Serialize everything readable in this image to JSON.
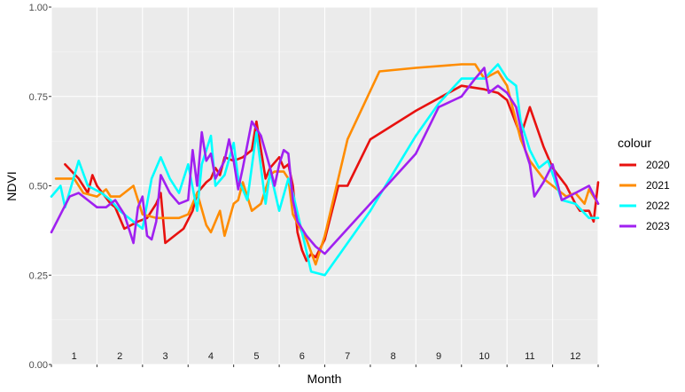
{
  "chart_data": {
    "type": "line",
    "xlabel": "Month",
    "ylabel": "NDVI",
    "legend_title": "colour",
    "legend_position": "right",
    "grid": true,
    "xlim": [
      0,
      12
    ],
    "ylim": [
      0,
      1
    ],
    "y_ticks": [
      "0.00",
      "0.25",
      "0.50",
      "0.75",
      "1.00"
    ],
    "x_tick_labels": [
      "1",
      "2",
      "3",
      "4",
      "5",
      "6",
      "7",
      "8",
      "9",
      "10",
      "11",
      "12"
    ],
    "series": [
      {
        "name": "2020",
        "color": "#e8110f",
        "points": [
          [
            0.3,
            0.56
          ],
          [
            0.6,
            0.52
          ],
          [
            0.8,
            0.48
          ],
          [
            0.9,
            0.53
          ],
          [
            1.0,
            0.5
          ],
          [
            1.3,
            0.45
          ],
          [
            1.4,
            0.44
          ],
          [
            1.6,
            0.38
          ],
          [
            1.9,
            0.4
          ],
          [
            2.1,
            0.41
          ],
          [
            2.3,
            0.45
          ],
          [
            2.4,
            0.48
          ],
          [
            2.5,
            0.34
          ],
          [
            2.7,
            0.36
          ],
          [
            2.9,
            0.38
          ],
          [
            3.1,
            0.43
          ],
          [
            3.2,
            0.48
          ],
          [
            3.4,
            0.51
          ],
          [
            3.5,
            0.52
          ],
          [
            3.6,
            0.55
          ],
          [
            3.7,
            0.53
          ],
          [
            3.8,
            0.58
          ],
          [
            4.0,
            0.57
          ],
          [
            4.2,
            0.58
          ],
          [
            4.4,
            0.6
          ],
          [
            4.5,
            0.68
          ],
          [
            4.7,
            0.52
          ],
          [
            4.8,
            0.55
          ],
          [
            5.0,
            0.58
          ],
          [
            5.1,
            0.55
          ],
          [
            5.2,
            0.56
          ],
          [
            5.3,
            0.5
          ],
          [
            5.4,
            0.37
          ],
          [
            5.5,
            0.32
          ],
          [
            5.6,
            0.29
          ],
          [
            5.7,
            0.31
          ],
          [
            5.8,
            0.3
          ],
          [
            6.0,
            0.35
          ],
          [
            6.3,
            0.5
          ],
          [
            6.5,
            0.5
          ],
          [
            7.0,
            0.63
          ],
          [
            8.0,
            0.71
          ],
          [
            9.0,
            0.78
          ],
          [
            9.5,
            0.77
          ],
          [
            9.8,
            0.76
          ],
          [
            10.0,
            0.74
          ],
          [
            10.3,
            0.64
          ],
          [
            10.5,
            0.72
          ],
          [
            10.8,
            0.61
          ],
          [
            11.0,
            0.55
          ],
          [
            11.3,
            0.5
          ],
          [
            11.5,
            0.45
          ],
          [
            11.6,
            0.43
          ],
          [
            11.8,
            0.43
          ],
          [
            11.9,
            0.4
          ],
          [
            12.0,
            0.51
          ]
        ]
      },
      {
        "name": "2021",
        "color": "#ff8c00",
        "points": [
          [
            0.1,
            0.52
          ],
          [
            0.5,
            0.52
          ],
          [
            0.7,
            0.48
          ],
          [
            1.0,
            0.47
          ],
          [
            1.2,
            0.49
          ],
          [
            1.3,
            0.47
          ],
          [
            1.5,
            0.47
          ],
          [
            1.8,
            0.5
          ],
          [
            2.0,
            0.42
          ],
          [
            2.3,
            0.41
          ],
          [
            2.5,
            0.41
          ],
          [
            2.8,
            0.41
          ],
          [
            3.0,
            0.42
          ],
          [
            3.2,
            0.48
          ],
          [
            3.4,
            0.39
          ],
          [
            3.5,
            0.37
          ],
          [
            3.7,
            0.43
          ],
          [
            3.8,
            0.36
          ],
          [
            4.0,
            0.45
          ],
          [
            4.1,
            0.46
          ],
          [
            4.2,
            0.51
          ],
          [
            4.4,
            0.43
          ],
          [
            4.6,
            0.45
          ],
          [
            4.8,
            0.53
          ],
          [
            4.9,
            0.54
          ],
          [
            5.1,
            0.54
          ],
          [
            5.2,
            0.52
          ],
          [
            5.3,
            0.42
          ],
          [
            5.5,
            0.37
          ],
          [
            5.6,
            0.35
          ],
          [
            5.8,
            0.28
          ],
          [
            6.0,
            0.36
          ],
          [
            6.5,
            0.63
          ],
          [
            7.2,
            0.82
          ],
          [
            8.0,
            0.83
          ],
          [
            9.0,
            0.84
          ],
          [
            9.3,
            0.84
          ],
          [
            9.5,
            0.8
          ],
          [
            9.8,
            0.82
          ],
          [
            10.0,
            0.78
          ],
          [
            10.3,
            0.63
          ],
          [
            10.5,
            0.57
          ],
          [
            10.8,
            0.52
          ],
          [
            11.0,
            0.5
          ],
          [
            11.3,
            0.47
          ],
          [
            11.5,
            0.48
          ],
          [
            11.7,
            0.45
          ],
          [
            11.8,
            0.49
          ],
          [
            12.0,
            0.45
          ]
        ]
      },
      {
        "name": "2022",
        "color": "#00ffff",
        "points": [
          [
            0.0,
            0.47
          ],
          [
            0.2,
            0.5
          ],
          [
            0.3,
            0.44
          ],
          [
            0.6,
            0.57
          ],
          [
            0.8,
            0.5
          ],
          [
            1.1,
            0.48
          ],
          [
            1.3,
            0.46
          ],
          [
            1.5,
            0.43
          ],
          [
            1.7,
            0.41
          ],
          [
            2.0,
            0.38
          ],
          [
            2.2,
            0.52
          ],
          [
            2.4,
            0.58
          ],
          [
            2.6,
            0.52
          ],
          [
            2.8,
            0.48
          ],
          [
            3.0,
            0.56
          ],
          [
            3.2,
            0.43
          ],
          [
            3.3,
            0.56
          ],
          [
            3.5,
            0.64
          ],
          [
            3.6,
            0.5
          ],
          [
            3.8,
            0.53
          ],
          [
            4.0,
            0.62
          ],
          [
            4.1,
            0.52
          ],
          [
            4.3,
            0.46
          ],
          [
            4.5,
            0.65
          ],
          [
            4.7,
            0.45
          ],
          [
            4.8,
            0.54
          ],
          [
            5.0,
            0.43
          ],
          [
            5.2,
            0.52
          ],
          [
            5.3,
            0.48
          ],
          [
            5.5,
            0.37
          ],
          [
            5.7,
            0.26
          ],
          [
            6.0,
            0.25
          ],
          [
            7.0,
            0.43
          ],
          [
            8.0,
            0.64
          ],
          [
            8.5,
            0.73
          ],
          [
            9.0,
            0.8
          ],
          [
            9.5,
            0.8
          ],
          [
            9.8,
            0.84
          ],
          [
            10.0,
            0.8
          ],
          [
            10.2,
            0.78
          ],
          [
            10.3,
            0.68
          ],
          [
            10.5,
            0.6
          ],
          [
            10.7,
            0.55
          ],
          [
            10.9,
            0.57
          ],
          [
            11.2,
            0.46
          ],
          [
            11.5,
            0.45
          ],
          [
            11.8,
            0.41
          ],
          [
            12.0,
            0.41
          ]
        ]
      },
      {
        "name": "2023",
        "color": "#a020f0",
        "points": [
          [
            0.0,
            0.37
          ],
          [
            0.2,
            0.42
          ],
          [
            0.4,
            0.47
          ],
          [
            0.6,
            0.48
          ],
          [
            0.8,
            0.46
          ],
          [
            1.0,
            0.44
          ],
          [
            1.2,
            0.44
          ],
          [
            1.4,
            0.46
          ],
          [
            1.6,
            0.42
          ],
          [
            1.8,
            0.34
          ],
          [
            1.9,
            0.44
          ],
          [
            2.0,
            0.47
          ],
          [
            2.1,
            0.36
          ],
          [
            2.2,
            0.35
          ],
          [
            2.3,
            0.4
          ],
          [
            2.4,
            0.53
          ],
          [
            2.6,
            0.48
          ],
          [
            2.8,
            0.45
          ],
          [
            3.0,
            0.46
          ],
          [
            3.1,
            0.6
          ],
          [
            3.2,
            0.5
          ],
          [
            3.3,
            0.65
          ],
          [
            3.4,
            0.57
          ],
          [
            3.5,
            0.59
          ],
          [
            3.6,
            0.52
          ],
          [
            3.8,
            0.57
          ],
          [
            3.9,
            0.63
          ],
          [
            4.0,
            0.57
          ],
          [
            4.1,
            0.49
          ],
          [
            4.2,
            0.55
          ],
          [
            4.4,
            0.68
          ],
          [
            4.6,
            0.64
          ],
          [
            4.8,
            0.55
          ],
          [
            4.9,
            0.5
          ],
          [
            5.0,
            0.56
          ],
          [
            5.1,
            0.6
          ],
          [
            5.2,
            0.59
          ],
          [
            5.3,
            0.46
          ],
          [
            5.4,
            0.4
          ],
          [
            5.6,
            0.36
          ],
          [
            5.8,
            0.33
          ],
          [
            6.0,
            0.31
          ],
          [
            7.0,
            0.45
          ],
          [
            8.0,
            0.59
          ],
          [
            8.5,
            0.72
          ],
          [
            9.0,
            0.75
          ],
          [
            9.3,
            0.8
          ],
          [
            9.5,
            0.83
          ],
          [
            9.6,
            0.76
          ],
          [
            9.8,
            0.78
          ],
          [
            10.0,
            0.76
          ],
          [
            10.2,
            0.72
          ],
          [
            10.4,
            0.6
          ],
          [
            10.5,
            0.56
          ],
          [
            10.6,
            0.47
          ],
          [
            10.8,
            0.51
          ],
          [
            11.0,
            0.56
          ],
          [
            11.2,
            0.46
          ],
          [
            11.5,
            0.48
          ],
          [
            11.8,
            0.5
          ],
          [
            12.0,
            0.45
          ]
        ]
      }
    ]
  }
}
